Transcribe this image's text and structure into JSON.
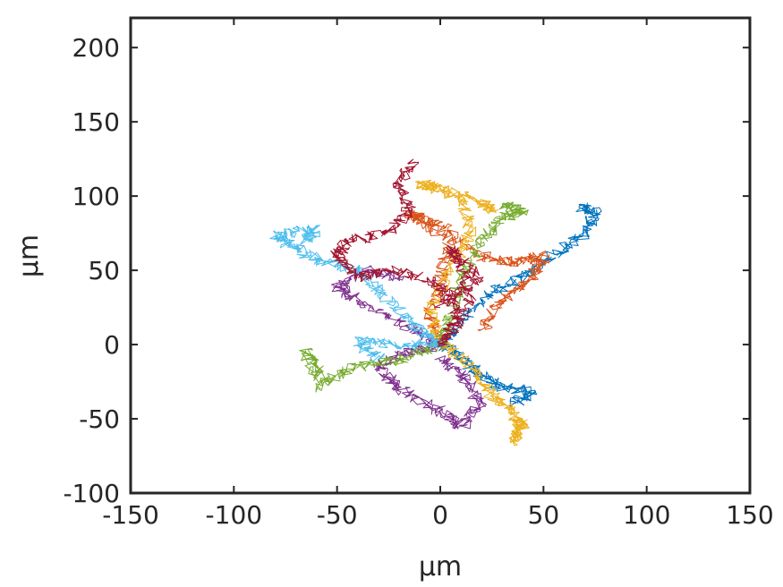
{
  "chart_data": {
    "type": "line",
    "title": "",
    "xlabel": "μm",
    "ylabel": "μm",
    "xlim": [
      -150,
      150
    ],
    "ylim": [
      -100,
      220
    ],
    "xticks": [
      -150,
      -100,
      -50,
      0,
      50,
      100,
      150
    ],
    "yticks": [
      -100,
      -50,
      0,
      50,
      100,
      150,
      200
    ],
    "xtick_labels": [
      "-150",
      "-100",
      "-50",
      "0",
      "50",
      "100",
      "150"
    ],
    "ytick_labels": [
      "-100",
      "-50",
      "0",
      "50",
      "100",
      "150",
      "200"
    ],
    "grid": false,
    "legend": false,
    "series": [
      {
        "color": "#0072BD",
        "points": [
          [
            0,
            0
          ],
          [
            10,
            15
          ],
          [
            25,
            35
          ],
          [
            40,
            45
          ],
          [
            55,
            60
          ],
          [
            70,
            75
          ],
          [
            75,
            90
          ],
          [
            68,
            92
          ]
        ]
      },
      {
        "color": "#0072BD",
        "points": [
          [
            0,
            0
          ],
          [
            10,
            -10
          ],
          [
            20,
            -20
          ],
          [
            30,
            -28
          ],
          [
            45,
            -32
          ],
          [
            35,
            -40
          ]
        ]
      },
      {
        "color": "#D95319",
        "points": [
          [
            0,
            0
          ],
          [
            -5,
            20
          ],
          [
            0,
            45
          ],
          [
            5,
            70
          ],
          [
            -10,
            85
          ],
          [
            -15,
            88
          ],
          [
            0,
            80
          ],
          [
            20,
            60
          ],
          [
            35,
            55
          ],
          [
            50,
            60
          ],
          [
            45,
            45
          ],
          [
            30,
            30
          ],
          [
            20,
            10
          ]
        ]
      },
      {
        "color": "#EDB120",
        "points": [
          [
            0,
            0
          ],
          [
            -5,
            25
          ],
          [
            5,
            50
          ],
          [
            15,
            75
          ],
          [
            10,
            100
          ],
          [
            -10,
            108
          ],
          [
            0,
            105
          ],
          [
            20,
            96
          ],
          [
            25,
            90
          ]
        ]
      },
      {
        "color": "#EDB120",
        "points": [
          [
            0,
            0
          ],
          [
            15,
            -15
          ],
          [
            25,
            -35
          ],
          [
            35,
            -45
          ],
          [
            40,
            -55
          ],
          [
            35,
            -65
          ],
          [
            40,
            -50
          ]
        ]
      },
      {
        "color": "#7E2F8E",
        "points": [
          [
            0,
            0
          ],
          [
            -15,
            -5
          ],
          [
            -30,
            -15
          ],
          [
            -20,
            -30
          ],
          [
            0,
            -45
          ],
          [
            10,
            -55
          ],
          [
            20,
            -40
          ],
          [
            10,
            -20
          ],
          [
            0,
            -10
          ]
        ]
      },
      {
        "color": "#7E2F8E",
        "points": [
          [
            0,
            0
          ],
          [
            -20,
            15
          ],
          [
            -40,
            30
          ],
          [
            -50,
            40
          ],
          [
            -35,
            50
          ],
          [
            -20,
            45
          ]
        ]
      },
      {
        "color": "#77AC30",
        "points": [
          [
            0,
            0
          ],
          [
            5,
            20
          ],
          [
            10,
            45
          ],
          [
            20,
            70
          ],
          [
            30,
            85
          ],
          [
            40,
            90
          ],
          [
            30,
            95
          ]
        ]
      },
      {
        "color": "#77AC30",
        "points": [
          [
            0,
            0
          ],
          [
            -20,
            -10
          ],
          [
            -40,
            -15
          ],
          [
            -55,
            -25
          ],
          [
            -65,
            -5
          ],
          [
            -58,
            -30
          ]
        ]
      },
      {
        "color": "#4DBEEE",
        "points": [
          [
            0,
            0
          ],
          [
            -10,
            10
          ],
          [
            -25,
            30
          ],
          [
            -40,
            50
          ],
          [
            -55,
            55
          ],
          [
            -70,
            65
          ],
          [
            -80,
            73
          ],
          [
            -60,
            78
          ],
          [
            -65,
            70
          ]
        ]
      },
      {
        "color": "#4DBEEE",
        "points": [
          [
            0,
            0
          ],
          [
            -20,
            0
          ],
          [
            -40,
            2
          ],
          [
            -30,
            -10
          ]
        ]
      },
      {
        "color": "#A2142F",
        "points": [
          [
            0,
            0
          ],
          [
            10,
            20
          ],
          [
            0,
            40
          ],
          [
            -20,
            50
          ],
          [
            -40,
            45
          ],
          [
            -50,
            60
          ],
          [
            -45,
            70
          ],
          [
            -25,
            75
          ],
          [
            -15,
            90
          ],
          [
            -20,
            110
          ],
          [
            -12,
            123
          ]
        ]
      },
      {
        "color": "#A2142F",
        "points": [
          [
            0,
            0
          ],
          [
            15,
            30
          ],
          [
            10,
            55
          ],
          [
            5,
            65
          ],
          [
            18,
            45
          ],
          [
            0,
            25
          ]
        ]
      }
    ]
  }
}
